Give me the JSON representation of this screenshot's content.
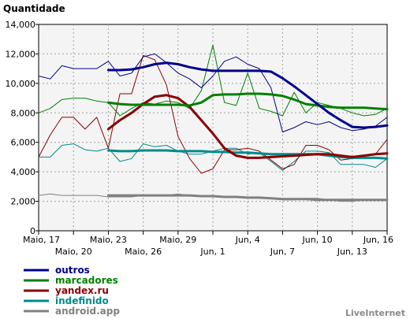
{
  "chart_data": {
    "type": "line",
    "ylabel": "Quantidade",
    "ylim": [
      0,
      14000
    ],
    "yticks": [
      0,
      2000,
      4000,
      6000,
      8000,
      10000,
      12000,
      14000
    ],
    "ytick_labels": [
      "0",
      "2,000",
      "4,000",
      "6,000",
      "8,000",
      "10,000",
      "12,000",
      "14,000"
    ],
    "grid": true,
    "legend_position": "bottom-left",
    "x": [
      "Maio, 17",
      "Maio, 18",
      "Maio, 19",
      "Maio, 20",
      "Maio, 21",
      "Maio, 22",
      "Maio, 23",
      "Maio, 24",
      "Maio, 25",
      "Maio, 26",
      "Maio, 27",
      "Maio, 28",
      "Maio, 29",
      "Maio, 30",
      "Maio, 31",
      "Jun, 1",
      "Jun, 2",
      "Jun, 3",
      "Jun, 4",
      "Jun, 5",
      "Jun, 6",
      "Jun, 7",
      "Jun, 8",
      "Jun, 9",
      "Jun, 10",
      "Jun, 11",
      "Jun, 12",
      "Jun, 13",
      "Jun, 14",
      "Jun, 15",
      "Jun, 16"
    ],
    "xtick_labels_row1": [
      {
        "i": 0,
        "label": "Maio, 17"
      },
      {
        "i": 6,
        "label": "Maio, 23"
      },
      {
        "i": 12,
        "label": "Maio, 29"
      },
      {
        "i": 18,
        "label": "Jun, 4"
      },
      {
        "i": 24,
        "label": "Jun, 10"
      },
      {
        "i": 30,
        "label": "Jun, 16"
      }
    ],
    "xtick_labels_row2": [
      {
        "i": 3,
        "label": "Maio, 20"
      },
      {
        "i": 9,
        "label": "Maio, 26"
      },
      {
        "i": 15,
        "label": "Jun, 1"
      },
      {
        "i": 21,
        "label": "Jun, 7"
      },
      {
        "i": 27,
        "label": "Jun, 13"
      }
    ],
    "series": [
      {
        "name": "outros",
        "color": "#00008b",
        "values": [
          10500,
          10300,
          11200,
          11000,
          11000,
          11000,
          11500,
          10500,
          10700,
          11800,
          12000,
          11400,
          10700,
          10300,
          9700,
          10500,
          11500,
          11800,
          11300,
          11000,
          9700,
          6700,
          7000,
          7400,
          7200,
          7400,
          7000,
          6800,
          6900,
          7100,
          7700
        ],
        "trend": [
          null,
          null,
          null,
          null,
          null,
          null,
          10900,
          10900,
          10950,
          11100,
          11300,
          11400,
          11300,
          11100,
          10950,
          10850,
          10850,
          10850,
          10850,
          10850,
          10800,
          10350,
          9800,
          9200,
          8600,
          8000,
          7500,
          7050,
          7000,
          7050,
          7150
        ]
      },
      {
        "name": "marcadores",
        "color": "#008000",
        "values": [
          8000,
          8300,
          8900,
          9000,
          9000,
          8800,
          8700,
          7800,
          8300,
          8700,
          8600,
          8800,
          8700,
          8300,
          9500,
          12600,
          8700,
          8500,
          10700,
          8300,
          8100,
          7800,
          9400,
          8000,
          8700,
          8500,
          8300,
          8000,
          7800,
          7900,
          8300
        ],
        "trend": [
          null,
          null,
          null,
          null,
          null,
          null,
          8700,
          8600,
          8550,
          8550,
          8550,
          8550,
          8550,
          8500,
          8700,
          9200,
          9250,
          9250,
          9300,
          9300,
          9250,
          9150,
          8900,
          8600,
          8500,
          8400,
          8350,
          8350,
          8350,
          8300,
          8250
        ]
      },
      {
        "name": "yandex.ru",
        "color": "#8b0000",
        "values": [
          5000,
          6500,
          7700,
          7700,
          6900,
          7700,
          5600,
          9300,
          9300,
          11900,
          11600,
          9900,
          6400,
          4900,
          3900,
          4200,
          5500,
          5500,
          5600,
          5400,
          4800,
          4200,
          4500,
          5800,
          5800,
          5500,
          4800,
          4900,
          5100,
          5200,
          6200
        ],
        "trend": [
          null,
          null,
          null,
          null,
          null,
          null,
          6900,
          7500,
          8000,
          8600,
          9100,
          9200,
          9000,
          8400,
          7500,
          6600,
          5600,
          5100,
          4950,
          4950,
          5000,
          5050,
          5100,
          5150,
          5200,
          5200,
          5100,
          5000,
          5100,
          5200,
          5250
        ]
      },
      {
        "name": "indefinido",
        "color": "#008b8b",
        "values": [
          5000,
          5000,
          5800,
          5900,
          5500,
          5400,
          5600,
          4700,
          4900,
          5900,
          5700,
          5800,
          5400,
          5200,
          5200,
          5400,
          5600,
          5600,
          5200,
          5300,
          4700,
          4100,
          4700,
          5400,
          5400,
          5300,
          4500,
          4500,
          4500,
          4300,
          4900
        ],
        "trend": [
          null,
          null,
          null,
          null,
          null,
          null,
          5450,
          5400,
          5400,
          5450,
          5450,
          5450,
          5400,
          5400,
          5400,
          5350,
          5350,
          5300,
          5300,
          5250,
          5200,
          5200,
          5200,
          5200,
          5200,
          5100,
          5000,
          4950,
          4950,
          4950,
          4900
        ]
      },
      {
        "name": "android.app",
        "color": "#808080",
        "values": [
          2400,
          2500,
          2400,
          2400,
          2400,
          2400,
          2300,
          2300,
          2300,
          2400,
          2400,
          2400,
          2500,
          2400,
          2400,
          2300,
          2300,
          2300,
          2300,
          2200,
          2200,
          2100,
          2100,
          2200,
          2200,
          2100,
          2000,
          2000,
          2100,
          2100,
          2100
        ],
        "trend": [
          null,
          null,
          null,
          null,
          null,
          null,
          2400,
          2400,
          2400,
          2400,
          2400,
          2400,
          2400,
          2400,
          2350,
          2350,
          2300,
          2300,
          2250,
          2250,
          2200,
          2150,
          2150,
          2150,
          2100,
          2100,
          2100,
          2100,
          2100,
          2100,
          2100
        ]
      }
    ]
  },
  "brand": "LiveInternet"
}
